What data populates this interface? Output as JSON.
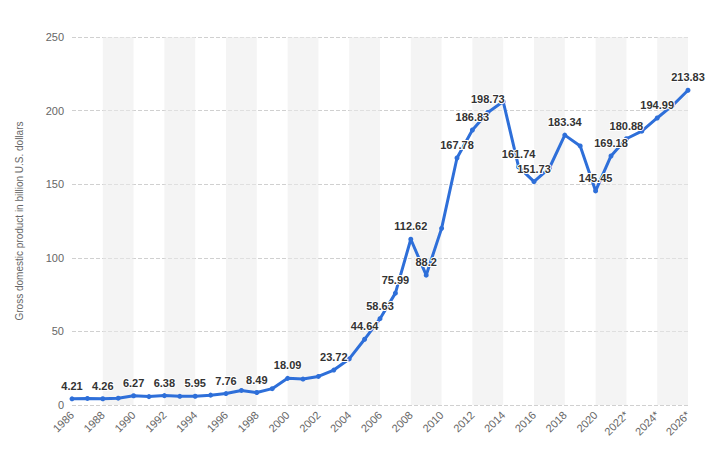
{
  "chart_data": {
    "type": "line",
    "y_label": "Gross domestic product in billion U.S. dollars",
    "categories": [
      "1986",
      null,
      "1988",
      null,
      "1990",
      null,
      "1992",
      null,
      "1994",
      null,
      "1996",
      null,
      "1998",
      null,
      "2000",
      null,
      "2002",
      null,
      "2004",
      null,
      "2006",
      null,
      "2008",
      null,
      "2010",
      null,
      "2012",
      null,
      "2014",
      null,
      "2016",
      null,
      "2018",
      null,
      "2020",
      null,
      "2022*",
      null,
      "2024*",
      null,
      "2026*"
    ],
    "values": [
      4.21,
      4.45,
      4.26,
      4.65,
      6.27,
      5.7,
      6.38,
      5.9,
      5.95,
      6.7,
      7.76,
      9.9,
      8.49,
      11.1,
      18.09,
      17.6,
      19.4,
      23.72,
      31.3,
      44.64,
      58.63,
      75.99,
      112.62,
      88.2,
      120.0,
      167.78,
      186.83,
      198.73,
      206.2,
      161.74,
      151.73,
      161.0,
      183.34,
      176.0,
      145.45,
      169.18,
      180.88,
      186.0,
      194.99,
      203.5,
      213.83
    ],
    "value_labels": [
      "4.21",
      null,
      "4.26",
      null,
      "6.27",
      null,
      "6.38",
      null,
      "5.95",
      null,
      "7.76",
      null,
      "8.49",
      null,
      "18.09",
      null,
      null,
      "23.72",
      null,
      "44.64",
      "58.63",
      "75.99",
      "112.62",
      "88.2",
      null,
      "167.78",
      "186.83",
      "198.73",
      null,
      "161.74",
      "151.73",
      null,
      "183.34",
      null,
      "145.45",
      "169.18",
      "180.88",
      null,
      "194.99",
      null,
      "213.83"
    ],
    "color": "#2e6fd9",
    "marker": "circle",
    "ylim": [
      0,
      250
    ],
    "yticks": [
      0,
      50,
      100,
      150,
      200,
      250
    ],
    "grid": true,
    "data_labels": true
  }
}
